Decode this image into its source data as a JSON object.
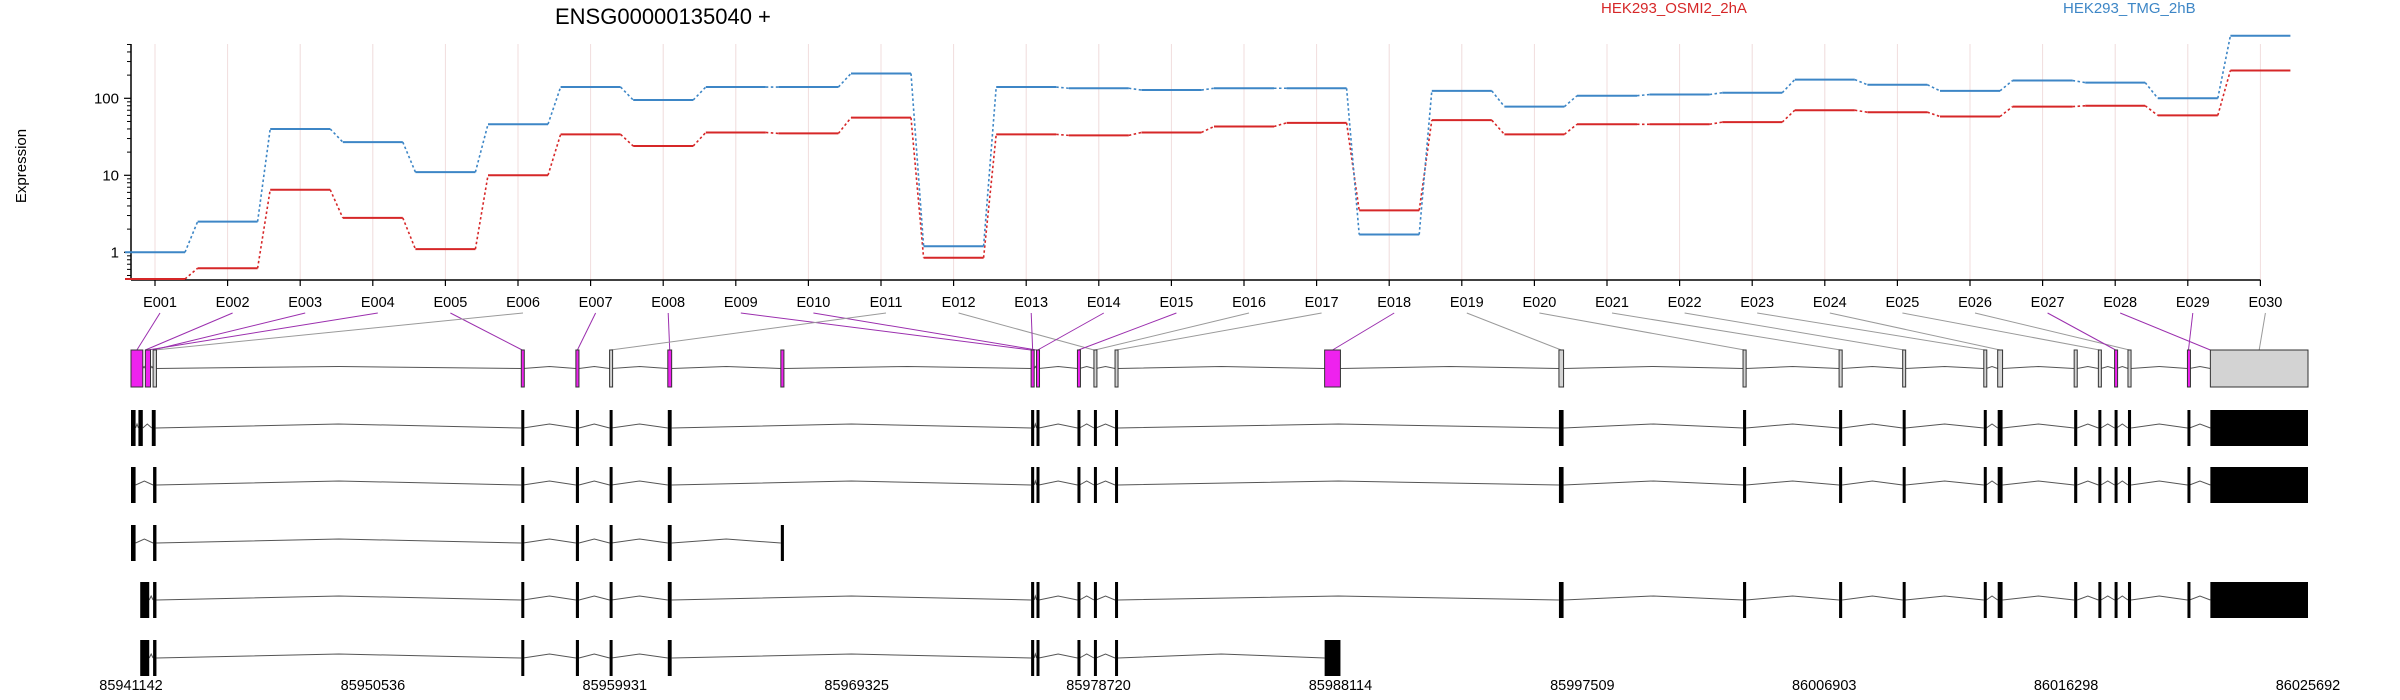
{
  "chart_data": {
    "type": "line",
    "title": "ENSG00000135040 +",
    "ylabel": "Expression",
    "y_scale": "log",
    "y_ticks": [
      "1",
      "10",
      "100"
    ],
    "ylim": [
      0.45,
      900
    ],
    "grid": "vertical lines at each exon",
    "legend_placement": "top-right",
    "categories": [
      "E001",
      "E002",
      "E003",
      "E004",
      "E005",
      "E006",
      "E007",
      "E008",
      "E009",
      "E010",
      "E011",
      "E012",
      "E013",
      "E014",
      "E015",
      "E016",
      "E017",
      "E018",
      "E019",
      "E020",
      "E021",
      "E022",
      "E023",
      "E024",
      "E025",
      "E026",
      "E027",
      "E028",
      "E029",
      "E030"
    ],
    "series": [
      {
        "name": "HEK293_OSMI2_2hA",
        "color": "#d62728",
        "values": [
          0.45,
          0.62,
          6.5,
          2.8,
          1.1,
          10,
          34,
          24,
          36,
          35,
          56,
          0.85,
          34,
          33,
          36,
          43,
          48,
          3.5,
          52,
          34,
          46,
          46,
          49,
          70,
          66,
          58,
          78,
          80,
          60,
          230
        ]
      },
      {
        "name": "HEK293_TMG_2hB",
        "color": "#3d86c6",
        "values": [
          1,
          2.5,
          40,
          27,
          11,
          46,
          140,
          95,
          140,
          140,
          210,
          1.2,
          140,
          135,
          128,
          135,
          135,
          1.7,
          125,
          78,
          108,
          112,
          118,
          175,
          150,
          125,
          170,
          160,
          100,
          650
        ]
      }
    ],
    "exon_highlight": [
      "pink",
      "pink",
      "pink",
      "pink",
      "pink",
      "gray",
      "pink",
      "pink",
      "pink",
      "pink",
      "gray",
      "gray",
      "pink",
      "pink",
      "pink",
      "gray",
      "gray",
      "pink",
      "gray",
      "gray",
      "gray",
      "gray",
      "gray",
      "gray",
      "gray",
      "gray",
      "pink",
      "pink",
      "pink",
      "gray"
    ],
    "coordinate_ticks": [
      "85941142",
      "85950536",
      "85959931",
      "85969325",
      "85978720",
      "85988114",
      "85997509",
      "86006903",
      "86016298",
      "86025692"
    ],
    "gene_model": {
      "intron_color": "#555555",
      "exon_color": "#000000",
      "pink": "#ee22ee",
      "gray": "#d3d3d3"
    },
    "transcripts": [
      {
        "start": 85941142,
        "end": 86025692,
        "exons": [
          [
            85941142,
            85941320
          ],
          [
            85941430,
            85941600
          ],
          [
            85941950,
            85942100
          ],
          [
            85956300,
            85956370
          ],
          [
            85958420,
            85958540
          ],
          [
            85959730,
            85959800
          ],
          [
            85961990,
            85962140
          ],
          [
            85976100,
            85976220
          ],
          [
            85976310,
            85976400
          ],
          [
            85977900,
            85977980
          ],
          [
            85978540,
            85978620
          ],
          [
            85979360,
            85979470
          ],
          [
            85996600,
            85996780
          ],
          [
            86003750,
            86003870
          ],
          [
            86007480,
            86007600
          ],
          [
            86009950,
            86010060
          ],
          [
            86013100,
            86013200
          ],
          [
            86013640,
            86013830
          ],
          [
            86016610,
            86016730
          ],
          [
            86017550,
            86017650
          ],
          [
            86018180,
            86018260
          ],
          [
            86018700,
            86018820
          ],
          [
            86021010,
            86021090
          ],
          [
            86021900,
            86025692
          ]
        ]
      },
      {
        "start": 85941142,
        "end": 86025692,
        "exons": [
          [
            85941142,
            85941320
          ],
          [
            85942000,
            85942130
          ],
          [
            85956300,
            85956370
          ],
          [
            85958420,
            85958540
          ],
          [
            85959730,
            85959800
          ],
          [
            85961990,
            85962140
          ],
          [
            85976100,
            85976220
          ],
          [
            85976310,
            85976400
          ],
          [
            85977900,
            85977980
          ],
          [
            85978540,
            85978620
          ],
          [
            85979360,
            85979470
          ],
          [
            85996600,
            85996780
          ],
          [
            86003750,
            86003870
          ],
          [
            86007480,
            86007600
          ],
          [
            86009950,
            86010060
          ],
          [
            86013100,
            86013200
          ],
          [
            86013640,
            86013830
          ],
          [
            86016610,
            86016730
          ],
          [
            86017550,
            86017650
          ],
          [
            86018180,
            86018260
          ],
          [
            86018700,
            86018820
          ],
          [
            86021010,
            86021090
          ],
          [
            86021900,
            86025692
          ]
        ]
      },
      {
        "start": 85941142,
        "end": 85966500,
        "exons": [
          [
            85941142,
            85941320
          ],
          [
            85942000,
            85942130
          ],
          [
            85956300,
            85956370
          ],
          [
            85958420,
            85958540
          ],
          [
            85959730,
            85959800
          ],
          [
            85961990,
            85962140
          ],
          [
            85966380,
            85966500
          ]
        ]
      },
      {
        "start": 85941500,
        "end": 86025692,
        "exons": [
          [
            85941500,
            85941850
          ],
          [
            85942000,
            85942130
          ],
          [
            85956300,
            85956370
          ],
          [
            85958420,
            85958540
          ],
          [
            85959730,
            85959800
          ],
          [
            85961990,
            85962140
          ],
          [
            85976100,
            85976220
          ],
          [
            85976310,
            85976400
          ],
          [
            85977900,
            85977980
          ],
          [
            85978540,
            85978620
          ],
          [
            85979360,
            85979470
          ],
          [
            85996600,
            85996780
          ],
          [
            86003750,
            86003870
          ],
          [
            86007480,
            86007600
          ],
          [
            86009950,
            86010060
          ],
          [
            86013100,
            86013200
          ],
          [
            86013640,
            86013830
          ],
          [
            86016610,
            86016730
          ],
          [
            86017550,
            86017650
          ],
          [
            86018180,
            86018260
          ],
          [
            86018700,
            86018820
          ],
          [
            86021010,
            86021090
          ],
          [
            86021900,
            86025692
          ]
        ]
      },
      {
        "start": 85941500,
        "end": 85988114,
        "exons": [
          [
            85941500,
            85941850
          ],
          [
            85942000,
            85942130
          ],
          [
            85956300,
            85956370
          ],
          [
            85958420,
            85958540
          ],
          [
            85959730,
            85959800
          ],
          [
            85961990,
            85962140
          ],
          [
            85976100,
            85976220
          ],
          [
            85976310,
            85976400
          ],
          [
            85977900,
            85977980
          ],
          [
            85978540,
            85978620
          ],
          [
            85979360,
            85979470
          ],
          [
            85987500,
            85988114
          ]
        ]
      }
    ]
  }
}
